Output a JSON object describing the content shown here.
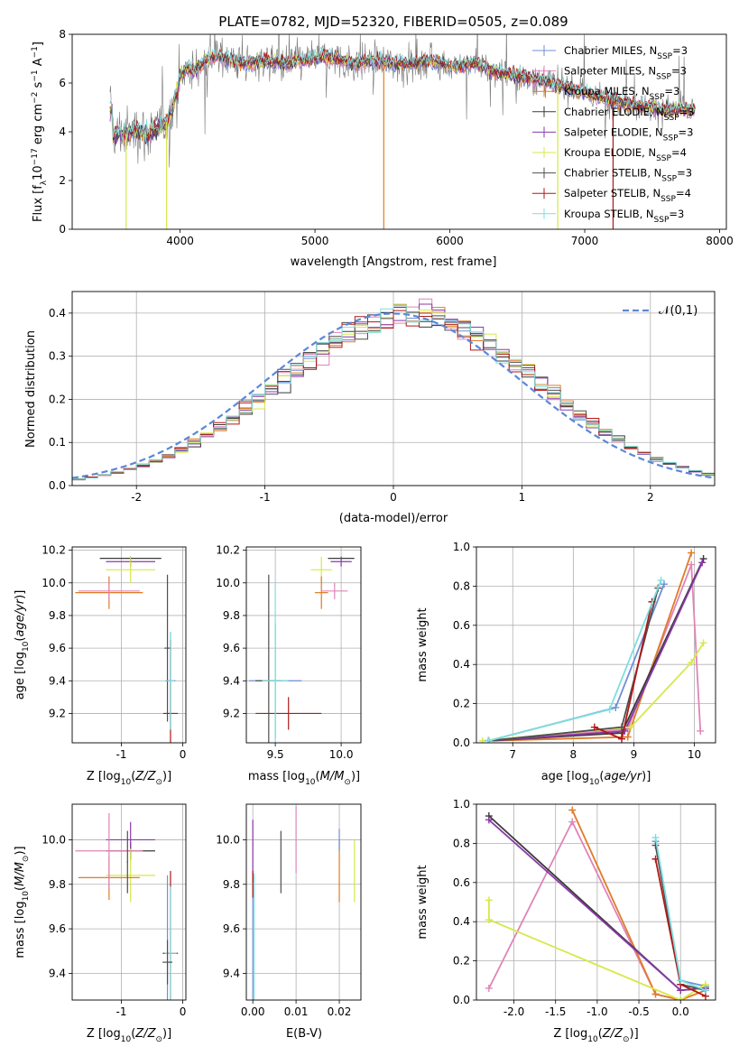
{
  "title": "PLATE=0782, MJD=52320, FIBERID=0505, z=0.089",
  "colors": {
    "Chabrier MILES": "#6f8fd6",
    "Salpeter MILES": "#e084b8",
    "Kroupa MILES": "#e07b27",
    "Chabrier ELODIE": "#3a3a3a",
    "Salpeter ELODIE": "#8a3aa8",
    "Kroupa ELODIE": "#d6e84a",
    "Chabrier STELIB": "#4f4f4f",
    "Salpeter STELIB": "#b01818",
    "Kroupa STELIB": "#7fdede",
    "data": "#777777",
    "normal": "#5a88d8"
  },
  "chart_data": [
    {
      "type": "line",
      "name": "spectrum",
      "xlabel": "wavelength [Angstrom, rest frame]",
      "ylabel": "Flux [f_λ10^-17 erg cm^-2 s^-1 A^-1]",
      "xlim": [
        3200,
        8050
      ],
      "ylim": [
        0,
        8
      ],
      "xticks": [
        4000,
        5000,
        6000,
        7000,
        8000
      ],
      "yticks": [
        0,
        2,
        4,
        6,
        8
      ],
      "legend_position": "right",
      "legend": [
        {
          "model": "Chabrier MILES",
          "label": "Chabrier MILES, N",
          "nssp": "=3"
        },
        {
          "model": "Salpeter MILES",
          "label": "Salpeter MILES, N",
          "nssp": "=3"
        },
        {
          "model": "Kroupa MILES",
          "label": "Kroupa MILES, N",
          "nssp": "=3"
        },
        {
          "model": "Chabrier ELODIE",
          "label": "Chabrier ELODIE, N",
          "nssp": "=3"
        },
        {
          "model": "Salpeter ELODIE",
          "label": "Salpeter ELODIE, N",
          "nssp": "=3"
        },
        {
          "model": "Kroupa ELODIE",
          "label": "Kroupa ELODIE, N",
          "nssp": "=4"
        },
        {
          "model": "Chabrier STELIB",
          "label": "Chabrier STELIB, N",
          "nssp": "=3"
        },
        {
          "model": "Salpeter STELIB",
          "label": "Salpeter STELIB, N",
          "nssp": "=4"
        },
        {
          "model": "Kroupa STELIB",
          "label": "Kroupa STELIB, N",
          "nssp": "=3"
        }
      ],
      "legend_subscript": "SSP",
      "continuum": {
        "x": [
          3500,
          3550,
          3600,
          3650,
          3700,
          3750,
          3800,
          3850,
          3900,
          3950,
          4000,
          4050,
          4100,
          4150,
          4200,
          4300,
          4400,
          4500,
          4600,
          4700,
          4800,
          4900,
          5000,
          5100,
          5200,
          5300,
          5400,
          5500,
          5600,
          5700,
          5800,
          5900,
          6000,
          6100,
          6200,
          6300,
          6400,
          6500,
          6600,
          6700,
          6800,
          6900,
          7000,
          7100,
          7200,
          7300,
          7400,
          7500,
          7600,
          7700,
          7800
        ],
        "y": [
          3.8,
          4.0,
          3.9,
          4.0,
          4.1,
          3.9,
          4.0,
          4.2,
          4.4,
          5.0,
          6.3,
          6.6,
          6.5,
          6.7,
          7.0,
          7.1,
          6.9,
          6.8,
          6.9,
          6.9,
          6.8,
          6.9,
          7.0,
          7.1,
          6.9,
          6.8,
          6.9,
          6.9,
          6.8,
          6.8,
          6.9,
          6.9,
          6.7,
          6.7,
          6.8,
          6.5,
          6.4,
          6.3,
          6.2,
          6.1,
          5.9,
          5.8,
          5.6,
          5.4,
          5.3,
          5.2,
          5.1,
          5.0,
          4.9,
          4.9,
          4.9
        ]
      },
      "spikes_down": [
        3600,
        3900,
        5510,
        6800,
        7210
      ]
    },
    {
      "type": "histogram",
      "name": "residuals",
      "xlabel": "(data-model)/error",
      "ylabel": "Normed distribution",
      "xlim": [
        -2.5,
        2.5
      ],
      "ylim": [
        0,
        0.45
      ],
      "xticks": [
        -2,
        -1,
        0,
        1,
        2
      ],
      "yticks": [
        0.0,
        0.1,
        0.2,
        0.3,
        0.4
      ],
      "legend": "𝒩(0,1)",
      "legend_position": "top-right",
      "bin_width": 0.1
    },
    {
      "type": "scatter",
      "name": "age-Z",
      "xlabel": "Z [log10(Z/Z⊙)]",
      "ylabel": "age  [log10(age/yr)]",
      "xlim": [
        -1.8,
        0.05
      ],
      "ylim": [
        9.02,
        10.22
      ],
      "xticks": [
        -1,
        0
      ],
      "yticks": [
        9.2,
        9.4,
        9.6,
        9.8,
        10.0,
        10.2
      ],
      "points": [
        {
          "m": "Chabrier MILES",
          "x": -0.2,
          "y": 9.4,
          "xe": 0.08,
          "ye": 0.3
        },
        {
          "m": "Chabrier ELODIE",
          "x": -0.85,
          "y": 10.15,
          "xe": 0.5,
          "ye": 0.01
        },
        {
          "m": "Salpeter ELODIE",
          "x": -0.85,
          "y": 10.13,
          "xe": 0.4,
          "ye": 0.03
        },
        {
          "m": "Kroupa ELODIE",
          "x": -0.85,
          "y": 10.08,
          "xe": 0.4,
          "ye": 0.08
        },
        {
          "m": "Kroupa MILES",
          "x": -1.2,
          "y": 9.94,
          "xe": 0.55,
          "ye": 0.1
        },
        {
          "m": "Salpeter MILES",
          "x": -1.2,
          "y": 9.95,
          "xe": 0.5,
          "ye": 0.05
        },
        {
          "m": "Chabrier STELIB",
          "x": -0.25,
          "y": 9.6,
          "xe": 0.05,
          "ye": 0.45
        },
        {
          "m": "Salpeter STELIB",
          "x": -0.2,
          "y": 9.2,
          "xe": 0.12,
          "ye": 0.45
        },
        {
          "m": "Kroupa STELIB",
          "x": -0.2,
          "y": 9.4,
          "xe": 0.06,
          "ye": 0.3
        }
      ]
    },
    {
      "type": "scatter",
      "name": "age-mass",
      "xlabel": "mass [log10(M/M⊙)]",
      "ylabel": "",
      "xlim": [
        9.28,
        10.15
      ],
      "ylim": [
        9.02,
        10.22
      ],
      "xticks": [
        9.5,
        10.0
      ],
      "yticks": [
        9.2,
        9.4,
        9.6,
        9.8,
        10.0,
        10.2
      ],
      "points": [
        {
          "m": "Chabrier MILES",
          "x": 9.5,
          "y": 9.4,
          "xe": 0.2,
          "ye": 0.35
        },
        {
          "m": "Chabrier ELODIE",
          "x": 10.0,
          "y": 10.15,
          "xe": 0.1,
          "ye": 0.01
        },
        {
          "m": "Salpeter ELODIE",
          "x": 10.0,
          "y": 10.13,
          "xe": 0.08,
          "ye": 0.03
        },
        {
          "m": "Kroupa ELODIE",
          "x": 9.85,
          "y": 10.08,
          "xe": 0.08,
          "ye": 0.08
        },
        {
          "m": "Kroupa MILES",
          "x": 9.85,
          "y": 9.94,
          "xe": 0.05,
          "ye": 0.1
        },
        {
          "m": "Salpeter MILES",
          "x": 9.95,
          "y": 9.95,
          "xe": 0.1,
          "ye": 0.05
        },
        {
          "m": "Chabrier STELIB",
          "x": 9.45,
          "y": 9.4,
          "xe": 0.1,
          "ye": 0.65
        },
        {
          "m": "Salpeter STELIB",
          "x": 9.6,
          "y": 9.2,
          "xe": 0.25,
          "ye": 0.1
        },
        {
          "m": "Kroupa STELIB",
          "x": 9.5,
          "y": 9.4,
          "xe": 0.1,
          "ye": 0.6
        }
      ]
    },
    {
      "type": "line",
      "name": "massweight-age",
      "xlabel": "age  [log10(age/yr)]",
      "ylabel": "mass weight",
      "xlim": [
        6.4,
        10.35
      ],
      "ylim": [
        0,
        1
      ],
      "xticks": [
        7,
        8,
        9,
        10
      ],
      "yticks": [
        0.0,
        0.2,
        0.4,
        0.6,
        0.8,
        1.0
      ],
      "series": [
        {
          "m": "Chabrier MILES",
          "x": [
            6.6,
            8.7,
            9.5
          ],
          "y": [
            0.01,
            0.18,
            0.81
          ]
        },
        {
          "m": "Salpeter MILES",
          "x": [
            6.6,
            8.9,
            9.95,
            10.1
          ],
          "y": [
            0.01,
            0.07,
            0.91,
            0.06
          ]
        },
        {
          "m": "Kroupa MILES",
          "x": [
            6.6,
            8.9,
            9.95
          ],
          "y": [
            0.01,
            0.03,
            0.97
          ]
        },
        {
          "m": "Chabrier ELODIE",
          "x": [
            6.6,
            8.8,
            10.15
          ],
          "y": [
            0.01,
            0.05,
            0.94
          ]
        },
        {
          "m": "Salpeter ELODIE",
          "x": [
            6.6,
            8.85,
            10.13
          ],
          "y": [
            0.01,
            0.06,
            0.92
          ]
        },
        {
          "m": "Kroupa ELODIE",
          "x": [
            6.5,
            8.95,
            9.95,
            10.15
          ],
          "y": [
            0.01,
            0.08,
            0.41,
            0.51
          ]
        },
        {
          "m": "Chabrier STELIB",
          "x": [
            6.6,
            8.8,
            9.4
          ],
          "y": [
            0.01,
            0.08,
            0.79
          ]
        },
        {
          "m": "Salpeter STELIB",
          "x": [
            8.35,
            8.8,
            9.3
          ],
          "y": [
            0.08,
            0.02,
            0.72
          ]
        },
        {
          "m": "Kroupa STELIB",
          "x": [
            6.6,
            8.6,
            9.45
          ],
          "y": [
            0.01,
            0.17,
            0.83
          ]
        }
      ]
    },
    {
      "type": "scatter",
      "name": "mass-Z",
      "xlabel": "Z [log10(Z/Z⊙)]",
      "ylabel": "mass [log10(M/M⊙)]",
      "xlim": [
        -1.8,
        0.05
      ],
      "ylim": [
        9.28,
        10.16
      ],
      "xticks": [
        -1,
        0
      ],
      "yticks": [
        9.4,
        9.6,
        9.8,
        10.0
      ],
      "points": [
        {
          "m": "Chabrier MILES",
          "x": -0.25,
          "y": 9.49,
          "xe": 0.08,
          "ye": 0.35
        },
        {
          "m": "Chabrier ELODIE",
          "x": -0.85,
          "y": 9.95,
          "xe": 0.4,
          "ye": 0.04
        },
        {
          "m": "Salpeter ELODIE",
          "x": -0.85,
          "y": 10.0,
          "xe": 0.4,
          "ye": 0.08
        },
        {
          "m": "Kroupa ELODIE",
          "x": -0.85,
          "y": 9.84,
          "xe": 0.4,
          "ye": 0.12
        },
        {
          "m": "Kroupa MILES",
          "x": -1.2,
          "y": 9.83,
          "xe": 0.5,
          "ye": 0.1
        },
        {
          "m": "Salpeter MILES",
          "x": -1.2,
          "y": 9.95,
          "xe": 0.55,
          "ye": 0.17
        },
        {
          "m": "Chabrier STELIB",
          "x": -0.9,
          "y": 9.9,
          "xe": 0.01,
          "ye": 0.14
        },
        {
          "m": "Salpeter STELIB",
          "x": -0.2,
          "y": 9.49,
          "xe": 0.12,
          "ye": 0.37
        },
        {
          "m": "Kroupa STELIB",
          "x": -0.2,
          "y": 9.49,
          "xe": 0.1,
          "ye": 0.3
        },
        {
          "m": "Chabrier STELIB",
          "x": -0.25,
          "y": 9.45,
          "xe": 0.08,
          "ye": 0.1
        }
      ]
    },
    {
      "type": "scatter",
      "name": "mass-EBV",
      "xlabel": "E(B-V)",
      "ylabel": "",
      "xlim": [
        -0.0015,
        0.025
      ],
      "ylim": [
        9.28,
        10.16
      ],
      "xticks": [
        0.0,
        0.01,
        0.02
      ],
      "yticks": [
        9.4,
        9.6,
        9.8,
        10.0
      ],
      "points": [
        {
          "m": "Chabrier MILES",
          "x": 0.0,
          "y": 9.49,
          "xe": 0.0,
          "ye": 0.35
        },
        {
          "m": "Salpeter ELODIE",
          "x": 0.0,
          "y": 9.95,
          "xe": 0.0,
          "ye": 0.14
        },
        {
          "m": "Salpeter STELIB",
          "x": 0.0,
          "y": 9.8,
          "xe": 0.0,
          "ye": 0.06
        },
        {
          "m": "Kroupa STELIB",
          "x": 0.0003,
          "y": 9.55,
          "xe": 0.0,
          "ye": 0.3
        },
        {
          "m": "Chabrier STELIB",
          "x": 0.0065,
          "y": 9.9,
          "xe": 0.0,
          "ye": 0.14
        },
        {
          "m": "Salpeter MILES",
          "x": 0.01,
          "y": 10.0,
          "xe": 0.0,
          "ye": 0.15
        },
        {
          "m": "Kroupa MILES",
          "x": 0.02,
          "y": 9.86,
          "xe": 0.0,
          "ye": 0.14
        },
        {
          "m": "Chabrier MILES",
          "x": 0.02,
          "y": 10.0,
          "xe": 0.0,
          "ye": 0.05
        },
        {
          "m": "Kroupa ELODIE",
          "x": 0.0235,
          "y": 9.86,
          "xe": 0.0,
          "ye": 0.14
        }
      ]
    },
    {
      "type": "line",
      "name": "massweight-Z",
      "xlabel": "Z [log10(Z/Z⊙)]",
      "ylabel": "mass weight",
      "xlim": [
        -2.45,
        0.42
      ],
      "ylim": [
        0,
        1
      ],
      "xticks": [
        -2.0,
        -1.5,
        -1.0,
        -0.5,
        0.0
      ],
      "yticks": [
        0.0,
        0.2,
        0.4,
        0.6,
        0.8,
        1.0
      ],
      "series": [
        {
          "m": "Chabrier MILES",
          "x": [
            -0.3,
            0.0,
            0.3
          ],
          "y": [
            0.81,
            0.1,
            0.07
          ]
        },
        {
          "m": "Salpeter MILES",
          "x": [
            -2.3,
            -1.3,
            -0.3,
            0.0,
            0.3
          ],
          "y": [
            0.06,
            0.91,
            0.03,
            0.0,
            0.05
          ]
        },
        {
          "m": "Kroupa MILES",
          "x": [
            -1.3,
            -0.3,
            0.0,
            0.3
          ],
          "y": [
            0.97,
            0.03,
            0.0,
            0.05
          ]
        },
        {
          "m": "Chabrier ELODIE",
          "x": [
            -2.3,
            0.0,
            0.3
          ],
          "y": [
            0.94,
            0.05,
            0.06
          ]
        },
        {
          "m": "Salpeter ELODIE",
          "x": [
            -2.3,
            0.0,
            0.3
          ],
          "y": [
            0.92,
            0.05,
            0.06
          ]
        },
        {
          "m": "Kroupa ELODIE",
          "x": [
            -2.3,
            -2.3,
            0.0,
            0.3
          ],
          "y": [
            0.51,
            0.41,
            0.0,
            0.08
          ]
        },
        {
          "m": "Chabrier STELIB",
          "x": [
            -0.3,
            0.0,
            0.3
          ],
          "y": [
            0.79,
            0.08,
            0.05
          ]
        },
        {
          "m": "Salpeter STELIB",
          "x": [
            -0.3,
            0.0,
            0.3
          ],
          "y": [
            0.72,
            0.08,
            0.02
          ]
        },
        {
          "m": "Kroupa STELIB",
          "x": [
            -0.3,
            0.0,
            0.3
          ],
          "y": [
            0.83,
            0.1,
            0.05
          ]
        }
      ]
    }
  ]
}
